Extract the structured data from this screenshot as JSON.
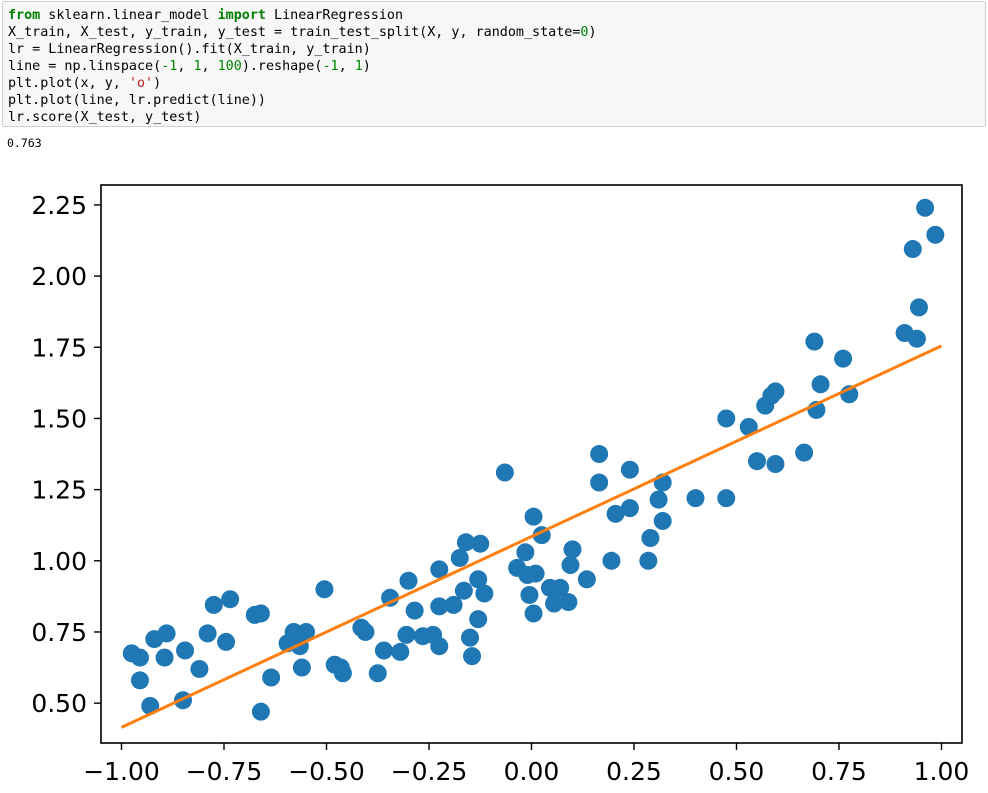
{
  "code_cell": {
    "lines": [
      [
        {
          "t": "from",
          "c": "kw"
        },
        {
          "t": " sklearn.linear_model "
        },
        {
          "t": "import",
          "c": "kw"
        },
        {
          "t": " LinearRegression"
        }
      ],
      [
        {
          "t": "X_train, X_test, y_train, y_test = train_test_split(X, y, random_state="
        },
        {
          "t": "0",
          "c": "num"
        },
        {
          "t": ")"
        }
      ],
      [
        {
          "t": "lr = LinearRegression().fit(X_train, y_train)"
        }
      ],
      [
        {
          "t": "line = np.linspace("
        },
        {
          "t": "-1",
          "c": "num"
        },
        {
          "t": ", "
        },
        {
          "t": "1",
          "c": "num"
        },
        {
          "t": ", "
        },
        {
          "t": "100",
          "c": "num"
        },
        {
          "t": ").reshape("
        },
        {
          "t": "-1",
          "c": "num"
        },
        {
          "t": ", "
        },
        {
          "t": "1",
          "c": "num"
        },
        {
          "t": ")"
        }
      ],
      [
        {
          "t": "plt.plot(x, y, "
        },
        {
          "t": "'o'",
          "c": "str"
        },
        {
          "t": ")"
        }
      ],
      [
        {
          "t": "plt.plot(line, lr.predict(line))"
        }
      ],
      [
        {
          "t": "lr.score(X_test, y_test)"
        }
      ]
    ]
  },
  "output": {
    "score_text": "0.763"
  },
  "chart_data": {
    "type": "scatter",
    "xlim": [
      -1.05,
      1.05
    ],
    "ylim": [
      0.36,
      2.32
    ],
    "xticks": [
      -1.0,
      -0.75,
      -0.5,
      -0.25,
      0.0,
      0.25,
      0.5,
      0.75,
      1.0
    ],
    "xtick_labels": [
      "−1.00",
      "−0.75",
      "−0.50",
      "−0.25",
      "0.00",
      "0.25",
      "0.50",
      "0.75",
      "1.00"
    ],
    "yticks": [
      0.5,
      0.75,
      1.0,
      1.25,
      1.5,
      1.75,
      2.0,
      2.25
    ],
    "ytick_labels": [
      "0.50",
      "0.75",
      "1.00",
      "1.25",
      "1.50",
      "1.75",
      "2.00",
      "2.25"
    ],
    "grid": false,
    "series": [
      {
        "kind": "scatter",
        "color": "#1f77b4",
        "points": [
          [
            -0.975,
            0.675
          ],
          [
            -0.955,
            0.66
          ],
          [
            -0.955,
            0.58
          ],
          [
            -0.93,
            0.49
          ],
          [
            -0.92,
            0.725
          ],
          [
            -0.895,
            0.66
          ],
          [
            -0.89,
            0.745
          ],
          [
            -0.85,
            0.51
          ],
          [
            -0.845,
            0.685
          ],
          [
            -0.81,
            0.62
          ],
          [
            -0.79,
            0.745
          ],
          [
            -0.775,
            0.845
          ],
          [
            -0.745,
            0.715
          ],
          [
            -0.735,
            0.865
          ],
          [
            -0.675,
            0.81
          ],
          [
            -0.66,
            0.815
          ],
          [
            -0.66,
            0.47
          ],
          [
            -0.635,
            0.59
          ],
          [
            -0.595,
            0.71
          ],
          [
            -0.58,
            0.75
          ],
          [
            -0.565,
            0.7
          ],
          [
            -0.56,
            0.625
          ],
          [
            -0.55,
            0.75
          ],
          [
            -0.505,
            0.9
          ],
          [
            -0.48,
            0.635
          ],
          [
            -0.465,
            0.625
          ],
          [
            -0.46,
            0.605
          ],
          [
            -0.415,
            0.765
          ],
          [
            -0.405,
            0.75
          ],
          [
            -0.375,
            0.605
          ],
          [
            -0.36,
            0.685
          ],
          [
            -0.345,
            0.87
          ],
          [
            -0.32,
            0.68
          ],
          [
            -0.305,
            0.74
          ],
          [
            -0.3,
            0.93
          ],
          [
            -0.285,
            0.825
          ],
          [
            -0.265,
            0.735
          ],
          [
            -0.24,
            0.74
          ],
          [
            -0.225,
            0.97
          ],
          [
            -0.225,
            0.84
          ],
          [
            -0.225,
            0.7
          ],
          [
            -0.19,
            0.845
          ],
          [
            -0.175,
            1.01
          ],
          [
            -0.165,
            0.895
          ],
          [
            -0.16,
            1.065
          ],
          [
            -0.15,
            0.73
          ],
          [
            -0.145,
            0.665
          ],
          [
            -0.13,
            0.795
          ],
          [
            -0.13,
            0.935
          ],
          [
            -0.125,
            1.06
          ],
          [
            -0.115,
            0.885
          ],
          [
            -0.065,
            1.31
          ],
          [
            -0.035,
            0.975
          ],
          [
            -0.015,
            1.03
          ],
          [
            -0.01,
            0.95
          ],
          [
            -0.005,
            0.88
          ],
          [
            0.005,
            1.155
          ],
          [
            0.005,
            0.815
          ],
          [
            0.01,
            0.955
          ],
          [
            0.025,
            1.09
          ],
          [
            0.045,
            0.905
          ],
          [
            0.055,
            0.85
          ],
          [
            0.07,
            0.905
          ],
          [
            0.09,
            0.855
          ],
          [
            0.095,
            0.985
          ],
          [
            0.1,
            1.04
          ],
          [
            0.135,
            0.935
          ],
          [
            0.165,
            1.275
          ],
          [
            0.165,
            1.375
          ],
          [
            0.195,
            1.0
          ],
          [
            0.205,
            1.165
          ],
          [
            0.24,
            1.32
          ],
          [
            0.24,
            1.185
          ],
          [
            0.285,
            1.0
          ],
          [
            0.29,
            1.08
          ],
          [
            0.31,
            1.215
          ],
          [
            0.32,
            1.275
          ],
          [
            0.32,
            1.14
          ],
          [
            0.4,
            1.22
          ],
          [
            0.475,
            1.5
          ],
          [
            0.475,
            1.22
          ],
          [
            0.53,
            1.47
          ],
          [
            0.55,
            1.35
          ],
          [
            0.57,
            1.545
          ],
          [
            0.585,
            1.58
          ],
          [
            0.595,
            1.595
          ],
          [
            0.595,
            1.34
          ],
          [
            0.665,
            1.38
          ],
          [
            0.69,
            1.77
          ],
          [
            0.695,
            1.53
          ],
          [
            0.705,
            1.62
          ],
          [
            0.76,
            1.71
          ],
          [
            0.775,
            1.585
          ],
          [
            0.91,
            1.8
          ],
          [
            0.93,
            2.095
          ],
          [
            0.94,
            1.78
          ],
          [
            0.945,
            1.89
          ],
          [
            0.96,
            2.24
          ],
          [
            0.985,
            2.145
          ]
        ]
      },
      {
        "kind": "line",
        "color": "#ff7f0e",
        "x": [
          -1.0,
          1.0
        ],
        "y": [
          0.415,
          1.755
        ]
      }
    ]
  }
}
